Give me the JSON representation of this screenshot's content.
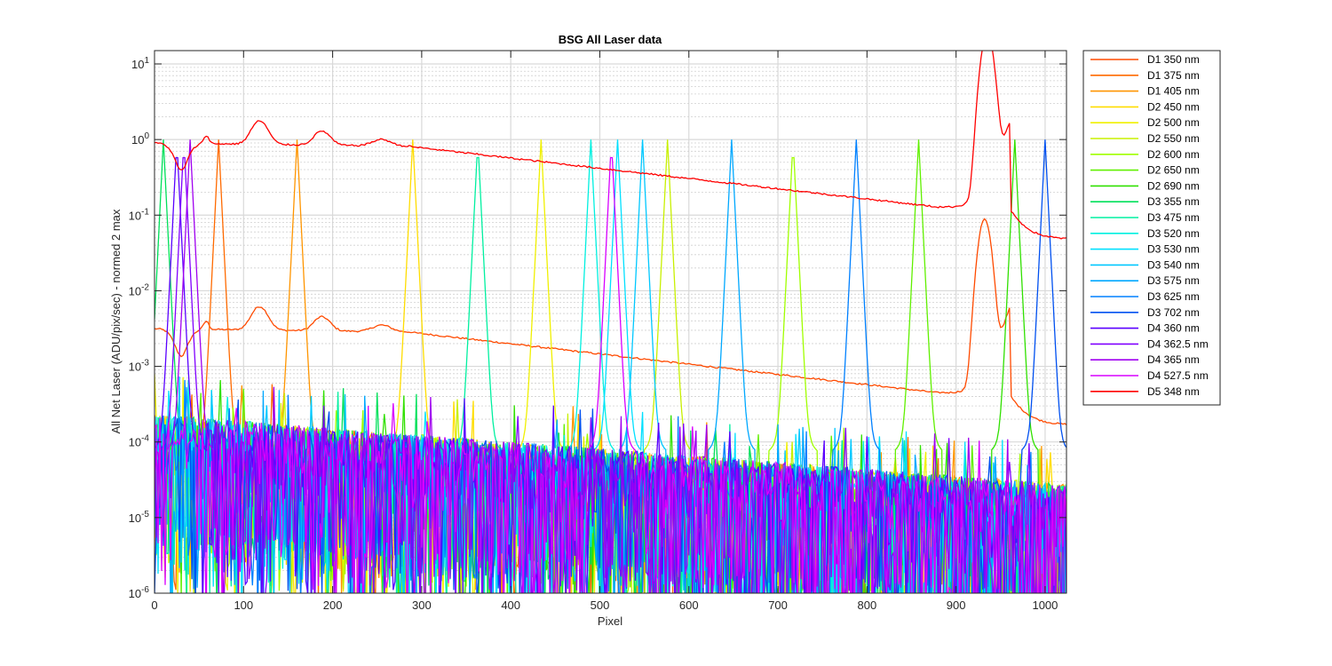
{
  "chart_data": {
    "type": "line",
    "title": "BSG  All Laser data",
    "xlabel": "Pixel",
    "ylabel": "All Net Laser (ADU/pix/sec) - normed 2 max",
    "xlim": [
      0,
      1024
    ],
    "ylim": [
      1e-06,
      15
    ],
    "yscale": "log",
    "grid": "on",
    "legend_placement": "outside-right",
    "x_ticks": [
      "0",
      "100",
      "200",
      "300",
      "400",
      "500",
      "600",
      "700",
      "800",
      "900",
      "1000"
    ],
    "y_ticks": [
      {
        "base": "10",
        "exp": "-6"
      },
      {
        "base": "10",
        "exp": "-5"
      },
      {
        "base": "10",
        "exp": "-4"
      },
      {
        "base": "10",
        "exp": "-3"
      },
      {
        "base": "10",
        "exp": "-2"
      },
      {
        "base": "10",
        "exp": "-1"
      },
      {
        "base": "10",
        "exp": "0"
      },
      {
        "base": "10",
        "exp": "1"
      }
    ],
    "series": [
      {
        "name": "D1 350 nm",
        "color": "#ff4a00",
        "peak_pixel": 932,
        "profile": "broad_d1"
      },
      {
        "name": "D1 375 nm",
        "color": "#ff6a00",
        "peak_pixel": 72,
        "profile": "peak"
      },
      {
        "name": "D1 405 nm",
        "color": "#ff9500",
        "peak_pixel": 160,
        "profile": "peak"
      },
      {
        "name": "D2 450 nm",
        "color": "#ffdd00",
        "peak_pixel": 290,
        "profile": "peak"
      },
      {
        "name": "D2 500 nm",
        "color": "#f0f000",
        "peak_pixel": 434,
        "profile": "peak"
      },
      {
        "name": "D2 550 nm",
        "color": "#c8f000",
        "peak_pixel": 576,
        "profile": "peak"
      },
      {
        "name": "D2 600 nm",
        "color": "#a0ff00",
        "peak_pixel": 717,
        "profile": "peak"
      },
      {
        "name": "D2 650 nm",
        "color": "#60f000",
        "peak_pixel": 858,
        "profile": "peak"
      },
      {
        "name": "D2 690 nm",
        "color": "#30e000",
        "peak_pixel": 966,
        "profile": "peak"
      },
      {
        "name": "D3 355 nm",
        "color": "#00e05a",
        "peak_pixel": 10,
        "profile": "peak"
      },
      {
        "name": "D3 475 nm",
        "color": "#00f0a0",
        "peak_pixel": 363,
        "profile": "peak"
      },
      {
        "name": "D3 520 nm",
        "color": "#00f0e0",
        "peak_pixel": 490,
        "profile": "peak"
      },
      {
        "name": "D3 530 nm",
        "color": "#00e0ff",
        "peak_pixel": 520,
        "profile": "peak"
      },
      {
        "name": "D3 540 nm",
        "color": "#00c8ff",
        "peak_pixel": 548,
        "profile": "peak"
      },
      {
        "name": "D3 575 nm",
        "color": "#00a8ff",
        "peak_pixel": 648,
        "profile": "peak"
      },
      {
        "name": "D3 625 nm",
        "color": "#0080ff",
        "peak_pixel": 788,
        "profile": "peak"
      },
      {
        "name": "D3 702 nm",
        "color": "#0050f0",
        "peak_pixel": 1000,
        "profile": "peak"
      },
      {
        "name": "D4 360 nm",
        "color": "#5a00ff",
        "peak_pixel": 25,
        "profile": "peak"
      },
      {
        "name": "D4 362.5 nm",
        "color": "#8000ff",
        "peak_pixel": 33,
        "profile": "peak"
      },
      {
        "name": "D4 365 nm",
        "color": "#a000f0",
        "peak_pixel": 40,
        "profile": "peak"
      },
      {
        "name": "D4 527.5 nm",
        "color": "#d800ff",
        "peak_pixel": 513,
        "profile": "peak"
      },
      {
        "name": "D5 348 nm",
        "color": "#ff0000",
        "peak_pixel": 935,
        "profile": "broad_d5"
      }
    ]
  }
}
